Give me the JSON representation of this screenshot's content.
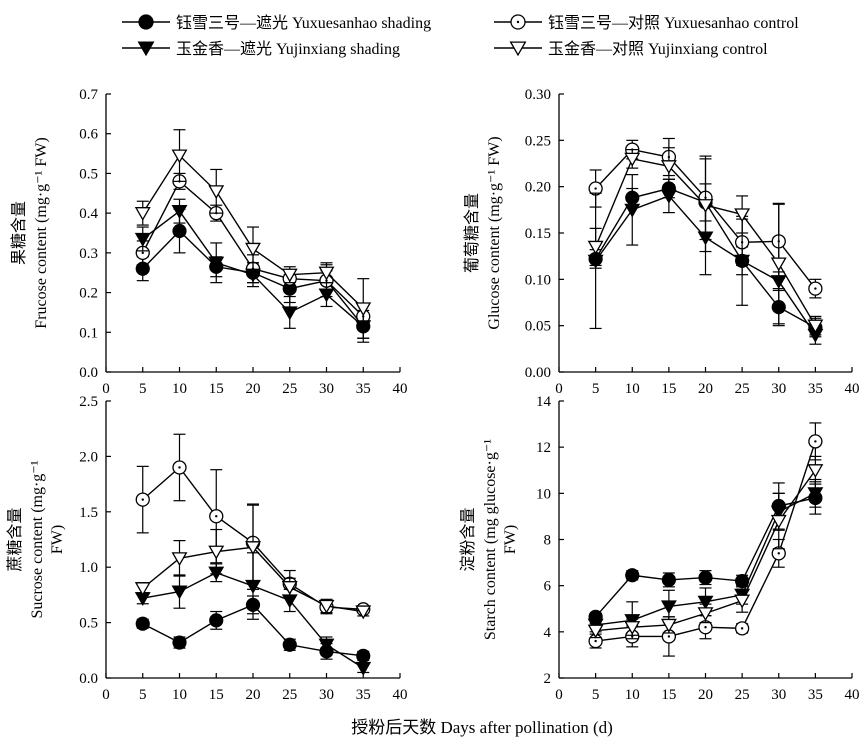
{
  "legend": [
    {
      "label": "钰雪三号—遮光 Yuxuesanhao shading",
      "marker": "circle",
      "fill": "#000000"
    },
    {
      "label": "钰雪三号—对照 Yuxuesanhao control",
      "marker": "circle-dot",
      "fill": "#ffffff"
    },
    {
      "label": "玉金香—遮光 Yujinxiang shading",
      "marker": "triangle-down",
      "fill": "#000000"
    },
    {
      "label": "玉金香—对照 Yujinxiang control",
      "marker": "triangle-down",
      "fill": "#ffffff"
    }
  ],
  "x_axis_label": "授粉后天数 Days after pollination (d)",
  "chart_data": [
    {
      "type": "line",
      "ylabel_cn": "果糖含量",
      "ylabel_en": "Frucose content (mg·g⁻¹ FW)",
      "x": [
        5,
        10,
        15,
        20,
        25,
        30,
        35
      ],
      "xlim": [
        0,
        40
      ],
      "xticks": [
        "0",
        "5",
        "10",
        "15",
        "20",
        "25",
        "30",
        "35",
        "40"
      ],
      "ylim": [
        0,
        0.7
      ],
      "yticks": [
        "0.0",
        "0.1",
        "0.2",
        "0.3",
        "0.4",
        "0.5",
        "0.6",
        "0.7"
      ],
      "series": [
        {
          "name": "钰雪三号—遮光 Yuxuesanhao shading",
          "values": [
            0.26,
            0.355,
            0.265,
            0.25,
            0.21,
            0.23,
            0.115
          ],
          "errors": [
            0.03,
            0.055,
            0.025,
            0.025,
            0.035,
            0.025,
            0.03
          ]
        },
        {
          "name": "钰雪三号—对照 Yuxuesanhao control",
          "values": [
            0.3,
            0.48,
            0.4,
            0.26,
            0.235,
            0.23,
            0.14
          ],
          "errors": [
            0.03,
            0.02,
            0.02,
            0.035,
            0.02,
            0.04,
            0.03
          ]
        },
        {
          "name": "玉金香—遮光 Yujinxiang shading",
          "values": [
            0.335,
            0.405,
            0.275,
            0.245,
            0.15,
            0.195,
            0.115
          ],
          "errors": [
            0.03,
            0.03,
            0.05,
            0.03,
            0.04,
            0.03,
            0.04
          ]
        },
        {
          "name": "玉金香—对照 Yujinxiang control",
          "values": [
            0.4,
            0.545,
            0.455,
            0.31,
            0.245,
            0.25,
            0.16
          ],
          "errors": [
            0.03,
            0.065,
            0.055,
            0.055,
            0.02,
            0.025,
            0.075
          ]
        }
      ]
    },
    {
      "type": "line",
      "ylabel_cn": "葡萄糖含量",
      "ylabel_en": "Glucose content (mg·g⁻¹ FW)",
      "x": [
        5,
        10,
        15,
        20,
        25,
        30,
        35
      ],
      "xlim": [
        0,
        40
      ],
      "xticks": [
        "0",
        "5",
        "10",
        "15",
        "20",
        "25",
        "30",
        "35",
        "40"
      ],
      "ylim": [
        0,
        0.3
      ],
      "yticks": [
        "0.00",
        "0.05",
        "0.10",
        "0.15",
        "0.20",
        "0.25",
        "0.30"
      ],
      "series": [
        {
          "name": "钰雪三号—遮光 Yuxuesanhao shading",
          "values": [
            0.122,
            0.188,
            0.198,
            0.183,
            0.12,
            0.07,
            0.048
          ],
          "errors": [
            0.01,
            0.01,
            0.01,
            0.02,
            0.015,
            0.02,
            0.01
          ]
        },
        {
          "name": "钰雪三号—对照 Yuxuesanhao control",
          "values": [
            0.198,
            0.24,
            0.232,
            0.188,
            0.14,
            0.141,
            0.09
          ],
          "errors": [
            0.02,
            0.01,
            0.02,
            0.045,
            0.025,
            0.04,
            0.01
          ]
        },
        {
          "name": "玉金香—遮光 Yujinxiang shading",
          "values": [
            0.12,
            0.175,
            0.19,
            0.145,
            0.12,
            0.098,
            0.04
          ],
          "errors": [
            0.073,
            0.038,
            0.018,
            0.04,
            0.048,
            0.01,
            0.01
          ]
        },
        {
          "name": "玉金香—对照 Yujinxiang control",
          "values": [
            0.135,
            0.23,
            0.222,
            0.18,
            0.17,
            0.117,
            0.05
          ],
          "errors": [
            0.02,
            0.01,
            0.02,
            0.05,
            0.02,
            0.065,
            0.01
          ]
        }
      ]
    },
    {
      "type": "line",
      "ylabel_cn": "蔗糖含量",
      "ylabel_en_1": "Sucrose content (mg·g⁻¹",
      "ylabel_en_2": "FW)",
      "x": [
        5,
        10,
        15,
        20,
        25,
        30,
        35
      ],
      "xlim": [
        0,
        40
      ],
      "xticks": [
        "0",
        "5",
        "10",
        "15",
        "20",
        "25",
        "30",
        "35",
        "40"
      ],
      "ylim": [
        0,
        2.5
      ],
      "yticks": [
        "0.0",
        "0.5",
        "1.0",
        "1.5",
        "2.0",
        "2.5"
      ],
      "series": [
        {
          "name": "钰雪三号—遮光 Yuxuesanhao shading",
          "values": [
            0.49,
            0.32,
            0.52,
            0.66,
            0.3,
            0.24,
            0.2
          ],
          "errors": [
            0.04,
            0.05,
            0.08,
            0.08,
            0.05,
            0.07,
            0.04
          ]
        },
        {
          "name": "钰雪三号—对照 Yuxuesanhao control",
          "values": [
            1.61,
            1.9,
            1.46,
            1.22,
            0.85,
            0.64,
            0.62
          ],
          "errors": [
            0.3,
            0.3,
            0.42,
            0.35,
            0.12,
            0.06,
            0.03
          ]
        },
        {
          "name": "玉金香—遮光 Yujinxiang shading",
          "values": [
            0.72,
            0.78,
            0.95,
            0.83,
            0.7,
            0.3,
            0.09
          ],
          "errors": [
            0.05,
            0.15,
            0.08,
            0.3,
            0.1,
            0.07,
            0.04
          ]
        },
        {
          "name": "玉金香—对照 Yujinxiang control",
          "values": [
            0.81,
            1.08,
            1.14,
            1.18,
            0.82,
            0.65,
            0.6
          ],
          "errors": [
            0.05,
            0.16,
            0.2,
            0.38,
            0.08,
            0.06,
            0.04
          ]
        }
      ]
    },
    {
      "type": "line",
      "ylabel_cn": "淀粉含量",
      "ylabel_en_1": "Starch content (mg glucose·g⁻¹",
      "ylabel_en_2": "FW)",
      "x": [
        5,
        10,
        15,
        20,
        25,
        30,
        35
      ],
      "xlim": [
        0,
        40
      ],
      "xticks": [
        "0",
        "5",
        "10",
        "15",
        "20",
        "25",
        "30",
        "35",
        "40"
      ],
      "ylim": [
        2,
        14
      ],
      "yticks": [
        "2",
        "4",
        "6",
        "8",
        "10",
        "12",
        "14"
      ],
      "series": [
        {
          "name": "钰雪三号—遮光 Yuxuesanhao shading",
          "values": [
            4.65,
            6.45,
            6.25,
            6.35,
            6.2,
            9.45,
            9.8
          ],
          "errors": [
            0.15,
            0.2,
            0.3,
            0.3,
            0.25,
            1.0,
            0.7
          ]
        },
        {
          "name": "钰雪三号—对照 Yuxuesanhao control",
          "values": [
            3.6,
            3.8,
            3.8,
            4.2,
            4.15,
            7.4,
            12.25
          ],
          "errors": [
            0.3,
            0.45,
            0.85,
            0.5,
            0.2,
            0.6,
            0.8
          ]
        },
        {
          "name": "玉金香—遮光 Yujinxiang shading",
          "values": [
            4.3,
            4.5,
            5.1,
            5.3,
            5.6,
            9.2,
            10.0
          ],
          "errors": [
            0.3,
            0.8,
            0.7,
            0.6,
            0.4,
            0.8,
            0.6
          ]
        },
        {
          "name": "玉金香—对照 Yujinxiang control",
          "values": [
            4.05,
            4.2,
            4.3,
            4.8,
            5.35,
            8.8,
            11.0
          ],
          "errors": [
            0.3,
            0.35,
            0.35,
            0.4,
            0.5,
            1.2,
            0.6
          ]
        }
      ]
    }
  ]
}
